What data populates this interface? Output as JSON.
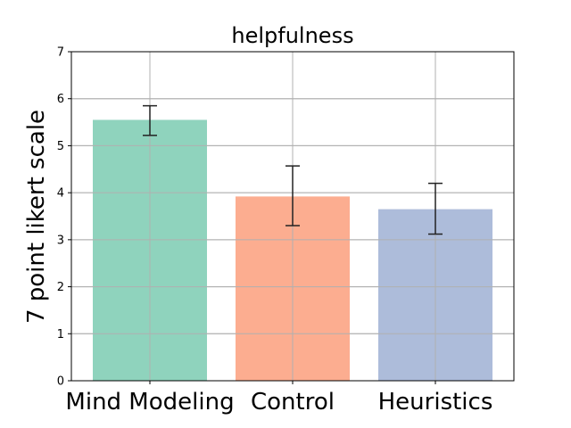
{
  "chart_data": {
    "type": "bar",
    "title": "helpfulness",
    "xlabel": "",
    "ylabel": "7 point likert scale",
    "categories": [
      "Mind Modeling",
      "Control",
      "Heuristics"
    ],
    "values": [
      5.55,
      3.92,
      3.65
    ],
    "error_low": [
      5.22,
      3.3,
      3.12
    ],
    "error_high": [
      5.85,
      4.57,
      4.2
    ],
    "colors": [
      "#8fd3bd",
      "#fcad90",
      "#adbcda"
    ],
    "ylim": [
      0,
      7
    ],
    "yticks": [
      0,
      1,
      2,
      3,
      4,
      5,
      6,
      7
    ],
    "grid": true,
    "legend": "none"
  }
}
